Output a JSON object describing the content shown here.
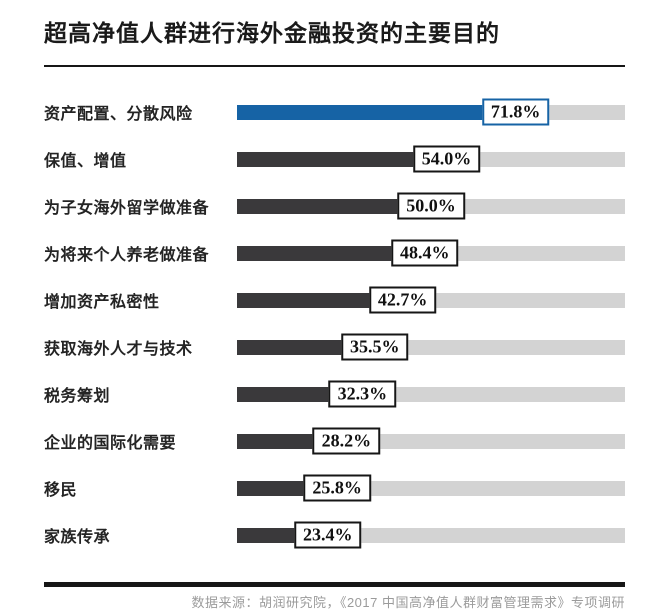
{
  "page": {
    "title": "超高净值人群进行海外金融投资的主要目的",
    "source": "数据来源：胡润研究院，《2017 中国高净值人群财富管理需求》专项调研"
  },
  "colors": {
    "highlight_bar": "#1663a5",
    "bar": "#3a393b",
    "track": "#d3d3d3",
    "rule": "#161616",
    "title_text": "#1a1a1a",
    "label_text": "#242424",
    "value_text": "#101010",
    "value_box_bg": "#ffffff",
    "source_text": "#9b9b9b"
  },
  "chart_data": {
    "type": "bar",
    "orientation": "horizontal",
    "title": "超高净值人群进行海外金融投资的主要目的",
    "categories": [
      "资产配置、分散风险",
      "保值、增值",
      "为子女海外留学做准备",
      "为将来个人养老做准备",
      "增加资产私密性",
      "获取海外人才与技术",
      "税务筹划",
      "企业的国际化需要",
      "移民",
      "家族传承"
    ],
    "values": [
      71.8,
      54.0,
      50.0,
      48.4,
      42.7,
      35.5,
      32.3,
      28.2,
      25.8,
      23.4
    ],
    "value_labels": [
      "71.8%",
      "54.0%",
      "50.0%",
      "48.4%",
      "42.7%",
      "35.5%",
      "32.3%",
      "28.2%",
      "25.8%",
      "23.4%"
    ],
    "xlim": [
      0,
      100
    ],
    "highlight_index": 0,
    "grid": false,
    "legend": false,
    "source": "数据来源：胡润研究院，《2017 中国高净值人群财富管理需求》专项调研"
  }
}
